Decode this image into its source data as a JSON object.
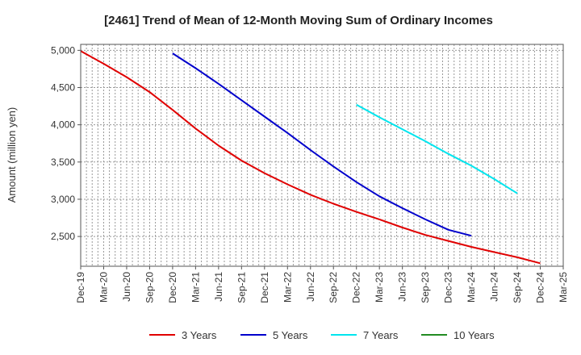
{
  "chart_data": {
    "type": "line",
    "title": "[2461]  Trend of Mean of 12-Month Moving Sum of Ordinary Incomes",
    "xlabel": "",
    "ylabel": "Amount (million yen)",
    "categories": [
      "Dec-19",
      "Mar-20",
      "Jun-20",
      "Sep-20",
      "Dec-20",
      "Mar-21",
      "Jun-21",
      "Sep-21",
      "Dec-21",
      "Mar-22",
      "Jun-22",
      "Sep-22",
      "Dec-22",
      "Mar-23",
      "Jun-23",
      "Sep-23",
      "Dec-23",
      "Mar-24",
      "Jun-24",
      "Sep-24",
      "Dec-24",
      "Mar-25"
    ],
    "ylim": [
      2100,
      5080
    ],
    "yticks": [
      2500,
      3000,
      3500,
      4000,
      4500,
      5000
    ],
    "ytick_labels": [
      "2,500",
      "3,000",
      "3,500",
      "4,000",
      "4,500",
      "5,000"
    ],
    "grid": true,
    "legend_position": "bottom",
    "series": [
      {
        "name": "3 Years",
        "color": "#e00000",
        "values": [
          4990,
          4820,
          4640,
          4440,
          4200,
          3950,
          3720,
          3520,
          3350,
          3200,
          3060,
          2940,
          2830,
          2730,
          2620,
          2520,
          2440,
          2360,
          2290,
          2220,
          2140,
          null
        ]
      },
      {
        "name": "5 Years",
        "color": "#0000cc",
        "values": [
          null,
          null,
          null,
          null,
          4960,
          4760,
          4550,
          4330,
          4110,
          3890,
          3660,
          3440,
          3230,
          3040,
          2880,
          2730,
          2590,
          2510,
          null,
          null,
          null,
          null
        ]
      },
      {
        "name": "7 Years",
        "color": "#00e5ee",
        "values": [
          null,
          null,
          null,
          null,
          null,
          null,
          null,
          null,
          null,
          null,
          null,
          null,
          4270,
          4100,
          3940,
          3780,
          3610,
          3450,
          3270,
          3080,
          null,
          null
        ]
      },
      {
        "name": "10 Years",
        "color": "#228b22",
        "values": [
          null,
          null,
          null,
          null,
          null,
          null,
          null,
          null,
          null,
          null,
          null,
          null,
          null,
          null,
          null,
          null,
          null,
          null,
          null,
          null,
          null,
          null
        ]
      }
    ]
  }
}
